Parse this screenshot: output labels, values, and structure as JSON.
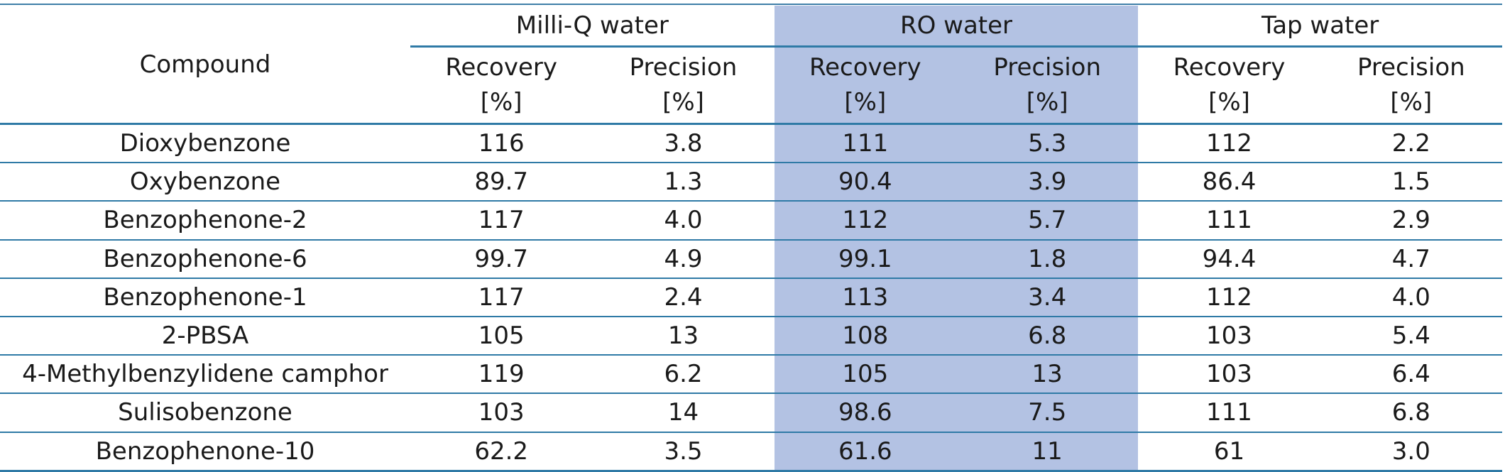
{
  "table": {
    "compound_header": "Compound",
    "groups": [
      {
        "label": "Milli-Q water",
        "highlight": false
      },
      {
        "label": "RO water",
        "highlight": true
      },
      {
        "label": "Tap water",
        "highlight": false
      }
    ],
    "sub_headers": {
      "recovery": "Recovery",
      "precision": "Precision",
      "unit": "[%]"
    },
    "rows": [
      {
        "compound": "Dioxybenzone",
        "values": [
          "116",
          "3.8",
          "111",
          "5.3",
          "112",
          "2.2"
        ]
      },
      {
        "compound": "Oxybenzone",
        "values": [
          "89.7",
          "1.3",
          "90.4",
          "3.9",
          "86.4",
          "1.5"
        ]
      },
      {
        "compound": "Benzophenone-2",
        "values": [
          "117",
          "4.0",
          "112",
          "5.7",
          "111",
          "2.9"
        ]
      },
      {
        "compound": "Benzophenone-6",
        "values": [
          "99.7",
          "4.9",
          "99.1",
          "1.8",
          "94.4",
          "4.7"
        ]
      },
      {
        "compound": "Benzophenone-1",
        "values": [
          "117",
          "2.4",
          "113",
          "3.4",
          "112",
          "4.0"
        ]
      },
      {
        "compound": "2-PBSA",
        "values": [
          "105",
          "13",
          "108",
          "6.8",
          "103",
          "5.4"
        ]
      },
      {
        "compound": "4-Methylbenzylidene camphor",
        "values": [
          "119",
          "6.2",
          "105",
          "13",
          "103",
          "6.4"
        ]
      },
      {
        "compound": "Sulisobenzone",
        "values": [
          "103",
          "14",
          "98.6",
          "7.5",
          "111",
          "6.8"
        ]
      },
      {
        "compound": "Benzophenone-10",
        "values": [
          "62.2",
          "3.5",
          "61.6",
          "11",
          "61",
          "3.0"
        ]
      }
    ]
  },
  "colors": {
    "rule": "#2f7aa6",
    "highlight": "#b3c2e3"
  }
}
